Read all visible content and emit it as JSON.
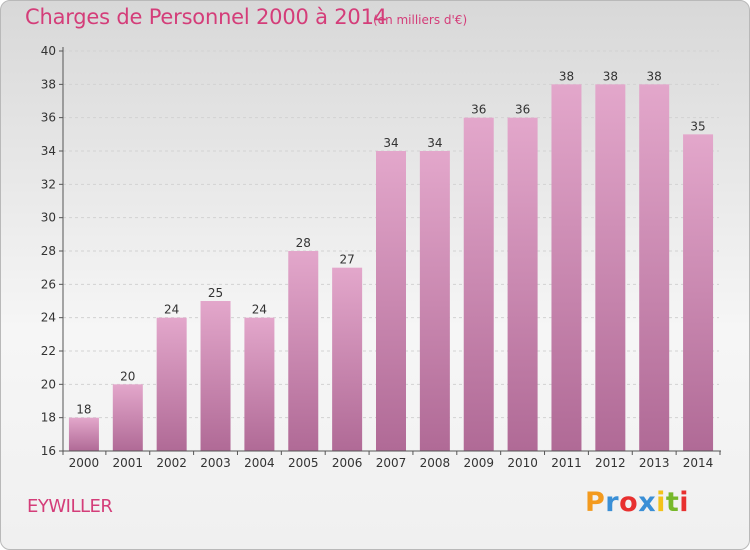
{
  "header": {
    "title": "Charges de Personnel 2000 à 2014",
    "subtitle": "(en milliers d'€)"
  },
  "footer": {
    "commune": "EYWILLER",
    "brand": [
      {
        "ch": "P",
        "color": "#f39a1e"
      },
      {
        "ch": "r",
        "color": "#3a8fd6"
      },
      {
        "ch": "o",
        "color": "#e8302f"
      },
      {
        "ch": "x",
        "color": "#3a8fd6"
      },
      {
        "ch": "i",
        "color": "#f3c21a"
      },
      {
        "ch": "t",
        "color": "#77b82a"
      },
      {
        "ch": "i",
        "color": "#e8302f"
      }
    ]
  },
  "colors": {
    "bar_top": "#e3a7cb",
    "bar_bottom": "#b06a96",
    "text_accent": "#d43d79"
  },
  "chart_data": {
    "type": "bar",
    "title": "Charges de Personnel 2000 à 2014",
    "subtitle": "(en milliers d'€)",
    "categories": [
      "2000",
      "2001",
      "2002",
      "2003",
      "2004",
      "2005",
      "2006",
      "2007",
      "2008",
      "2009",
      "2010",
      "2011",
      "2012",
      "2013",
      "2014"
    ],
    "values": [
      18,
      20,
      24,
      25,
      24,
      28,
      27,
      34,
      34,
      36,
      36,
      38,
      38,
      38,
      35
    ],
    "ylim": [
      16,
      40
    ],
    "yticks": [
      16,
      18,
      20,
      22,
      24,
      26,
      28,
      30,
      32,
      34,
      36,
      38,
      40
    ],
    "grid": true,
    "data_labels": true
  }
}
